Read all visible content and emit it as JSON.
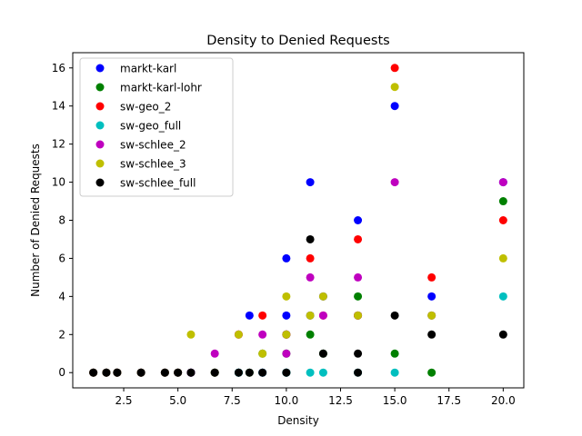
{
  "chart_data": {
    "type": "scatter",
    "title": "Density to Denied Requests",
    "xlabel": "Density",
    "ylabel": "Number of Denied Requests",
    "xlim": [
      0.15,
      20.95
    ],
    "ylim": [
      -0.8,
      16.8
    ],
    "xticks": [
      2.5,
      5.0,
      7.5,
      10.0,
      12.5,
      15.0,
      17.5,
      20.0
    ],
    "xtick_labels": [
      "2.5",
      "5.0",
      "7.5",
      "10.0",
      "12.5",
      "15.0",
      "17.5",
      "20.0"
    ],
    "yticks": [
      0,
      2,
      4,
      6,
      8,
      10,
      12,
      14,
      16
    ],
    "ytick_labels": [
      "0",
      "2",
      "4",
      "6",
      "8",
      "10",
      "12",
      "14",
      "16"
    ],
    "grid": false,
    "legend_position": "upper-left",
    "series": [
      {
        "name": "markt-karl",
        "color": "#0000ff",
        "points": [
          [
            1.1,
            0
          ],
          [
            1.7,
            0
          ],
          [
            2.2,
            0
          ],
          [
            3.3,
            0
          ],
          [
            4.4,
            0
          ],
          [
            5.0,
            0
          ],
          [
            5.6,
            0
          ],
          [
            6.7,
            0
          ],
          [
            7.8,
            0
          ],
          [
            8.3,
            3
          ],
          [
            8.9,
            0
          ],
          [
            10.0,
            6
          ],
          [
            10.0,
            3
          ],
          [
            10.0,
            2
          ],
          [
            10.0,
            0
          ],
          [
            11.1,
            10
          ],
          [
            11.1,
            3
          ],
          [
            11.7,
            4
          ],
          [
            13.3,
            8
          ],
          [
            13.3,
            3
          ],
          [
            15.0,
            14
          ],
          [
            16.7,
            4
          ],
          [
            20.0,
            10
          ]
        ]
      },
      {
        "name": "markt-karl-lohr",
        "color": "#008000",
        "points": [
          [
            1.1,
            0
          ],
          [
            1.7,
            0
          ],
          [
            2.2,
            0
          ],
          [
            3.3,
            0
          ],
          [
            4.4,
            0
          ],
          [
            5.0,
            0
          ],
          [
            5.6,
            0
          ],
          [
            6.7,
            0
          ],
          [
            7.8,
            0
          ],
          [
            8.3,
            0
          ],
          [
            8.9,
            1
          ],
          [
            10.0,
            2
          ],
          [
            10.0,
            1
          ],
          [
            10.0,
            0
          ],
          [
            11.1,
            2
          ],
          [
            11.7,
            1
          ],
          [
            13.3,
            4
          ],
          [
            13.3,
            3
          ],
          [
            15.0,
            1
          ],
          [
            16.7,
            0
          ],
          [
            20.0,
            9
          ]
        ]
      },
      {
        "name": "sw-geo_2",
        "color": "#ff0000",
        "points": [
          [
            1.1,
            0
          ],
          [
            1.7,
            0
          ],
          [
            2.2,
            0
          ],
          [
            3.3,
            0
          ],
          [
            4.4,
            0
          ],
          [
            5.0,
            0
          ],
          [
            5.6,
            0
          ],
          [
            6.7,
            0
          ],
          [
            7.8,
            2
          ],
          [
            8.9,
            3
          ],
          [
            10.0,
            2
          ],
          [
            11.1,
            6
          ],
          [
            11.7,
            3
          ],
          [
            13.3,
            7
          ],
          [
            13.3,
            3
          ],
          [
            15.0,
            16
          ],
          [
            16.7,
            5
          ],
          [
            20.0,
            8
          ]
        ]
      },
      {
        "name": "sw-geo_full",
        "color": "#00bfbf",
        "points": [
          [
            1.1,
            0
          ],
          [
            1.7,
            0
          ],
          [
            2.2,
            0
          ],
          [
            3.3,
            0
          ],
          [
            4.4,
            0
          ],
          [
            5.0,
            0
          ],
          [
            5.6,
            0
          ],
          [
            6.7,
            0
          ],
          [
            7.8,
            0
          ],
          [
            8.9,
            0
          ],
          [
            10.0,
            0
          ],
          [
            11.1,
            0
          ],
          [
            11.7,
            0
          ],
          [
            13.3,
            0
          ],
          [
            15.0,
            0
          ],
          [
            16.7,
            3
          ],
          [
            20.0,
            4
          ]
        ]
      },
      {
        "name": "sw-schlee_2",
        "color": "#bf00bf",
        "points": [
          [
            1.1,
            0
          ],
          [
            1.7,
            0
          ],
          [
            2.2,
            0
          ],
          [
            3.3,
            0
          ],
          [
            4.4,
            0
          ],
          [
            5.0,
            0
          ],
          [
            5.6,
            0
          ],
          [
            6.7,
            1
          ],
          [
            7.8,
            2
          ],
          [
            8.9,
            2
          ],
          [
            10.0,
            2
          ],
          [
            10.0,
            1
          ],
          [
            11.1,
            5
          ],
          [
            11.7,
            3
          ],
          [
            13.3,
            5
          ],
          [
            13.3,
            3
          ],
          [
            15.0,
            10
          ],
          [
            16.7,
            3
          ],
          [
            20.0,
            10
          ]
        ]
      },
      {
        "name": "sw-schlee_3",
        "color": "#bfbf00",
        "points": [
          [
            1.1,
            0
          ],
          [
            1.7,
            0
          ],
          [
            2.2,
            0
          ],
          [
            3.3,
            0
          ],
          [
            4.4,
            0
          ],
          [
            5.0,
            0
          ],
          [
            5.6,
            2
          ],
          [
            6.7,
            0
          ],
          [
            7.8,
            2
          ],
          [
            8.9,
            1
          ],
          [
            10.0,
            4
          ],
          [
            10.0,
            2
          ],
          [
            11.1,
            3
          ],
          [
            11.7,
            4
          ],
          [
            13.3,
            3
          ],
          [
            15.0,
            15
          ],
          [
            16.7,
            3
          ],
          [
            20.0,
            6
          ]
        ]
      },
      {
        "name": "sw-schlee_full",
        "color": "#000000",
        "points": [
          [
            1.1,
            0
          ],
          [
            1.7,
            0
          ],
          [
            2.2,
            0
          ],
          [
            3.3,
            0
          ],
          [
            4.4,
            0
          ],
          [
            5.0,
            0
          ],
          [
            5.6,
            0
          ],
          [
            6.7,
            0
          ],
          [
            7.8,
            0
          ],
          [
            8.3,
            0
          ],
          [
            8.9,
            0
          ],
          [
            10.0,
            0
          ],
          [
            11.1,
            7
          ],
          [
            11.7,
            1
          ],
          [
            13.3,
            1
          ],
          [
            13.3,
            0
          ],
          [
            15.0,
            3
          ],
          [
            16.7,
            2
          ],
          [
            20.0,
            2
          ]
        ]
      }
    ]
  }
}
